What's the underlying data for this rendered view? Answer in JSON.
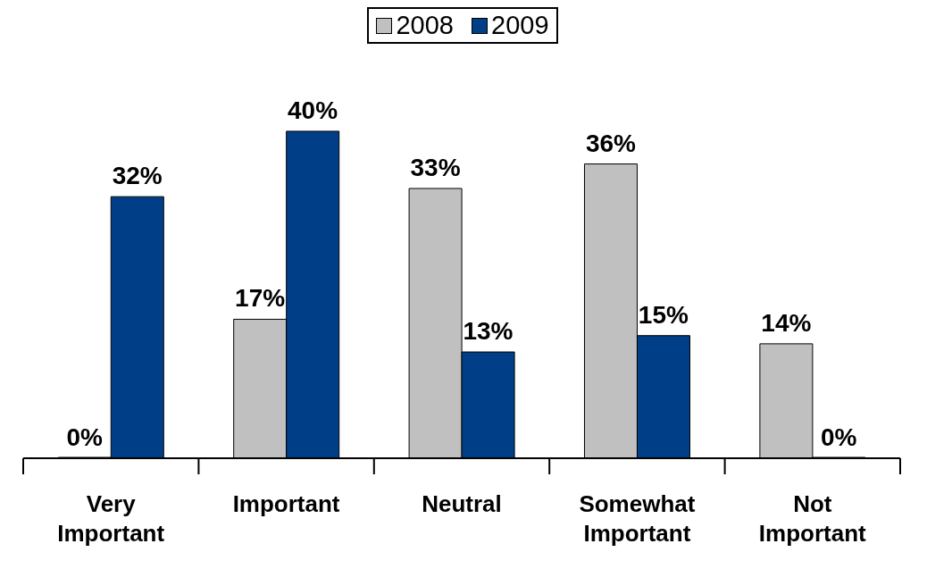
{
  "chart_data": {
    "type": "bar",
    "categories": [
      "Very Important",
      "Important",
      "Neutral",
      "Somewhat Important",
      "Not Important"
    ],
    "series": [
      {
        "name": "2008",
        "color": "#c0c0c0",
        "values": [
          0,
          17,
          33,
          36,
          14
        ],
        "value_labels": [
          "0%",
          "17%",
          "33%",
          "36%",
          "14%"
        ]
      },
      {
        "name": "2009",
        "color": "#003f87",
        "values": [
          32,
          40,
          13,
          15,
          0
        ],
        "value_labels": [
          "32%",
          "40%",
          "13%",
          "15%",
          "0%"
        ]
      }
    ],
    "legend": "top",
    "grid": false
  }
}
